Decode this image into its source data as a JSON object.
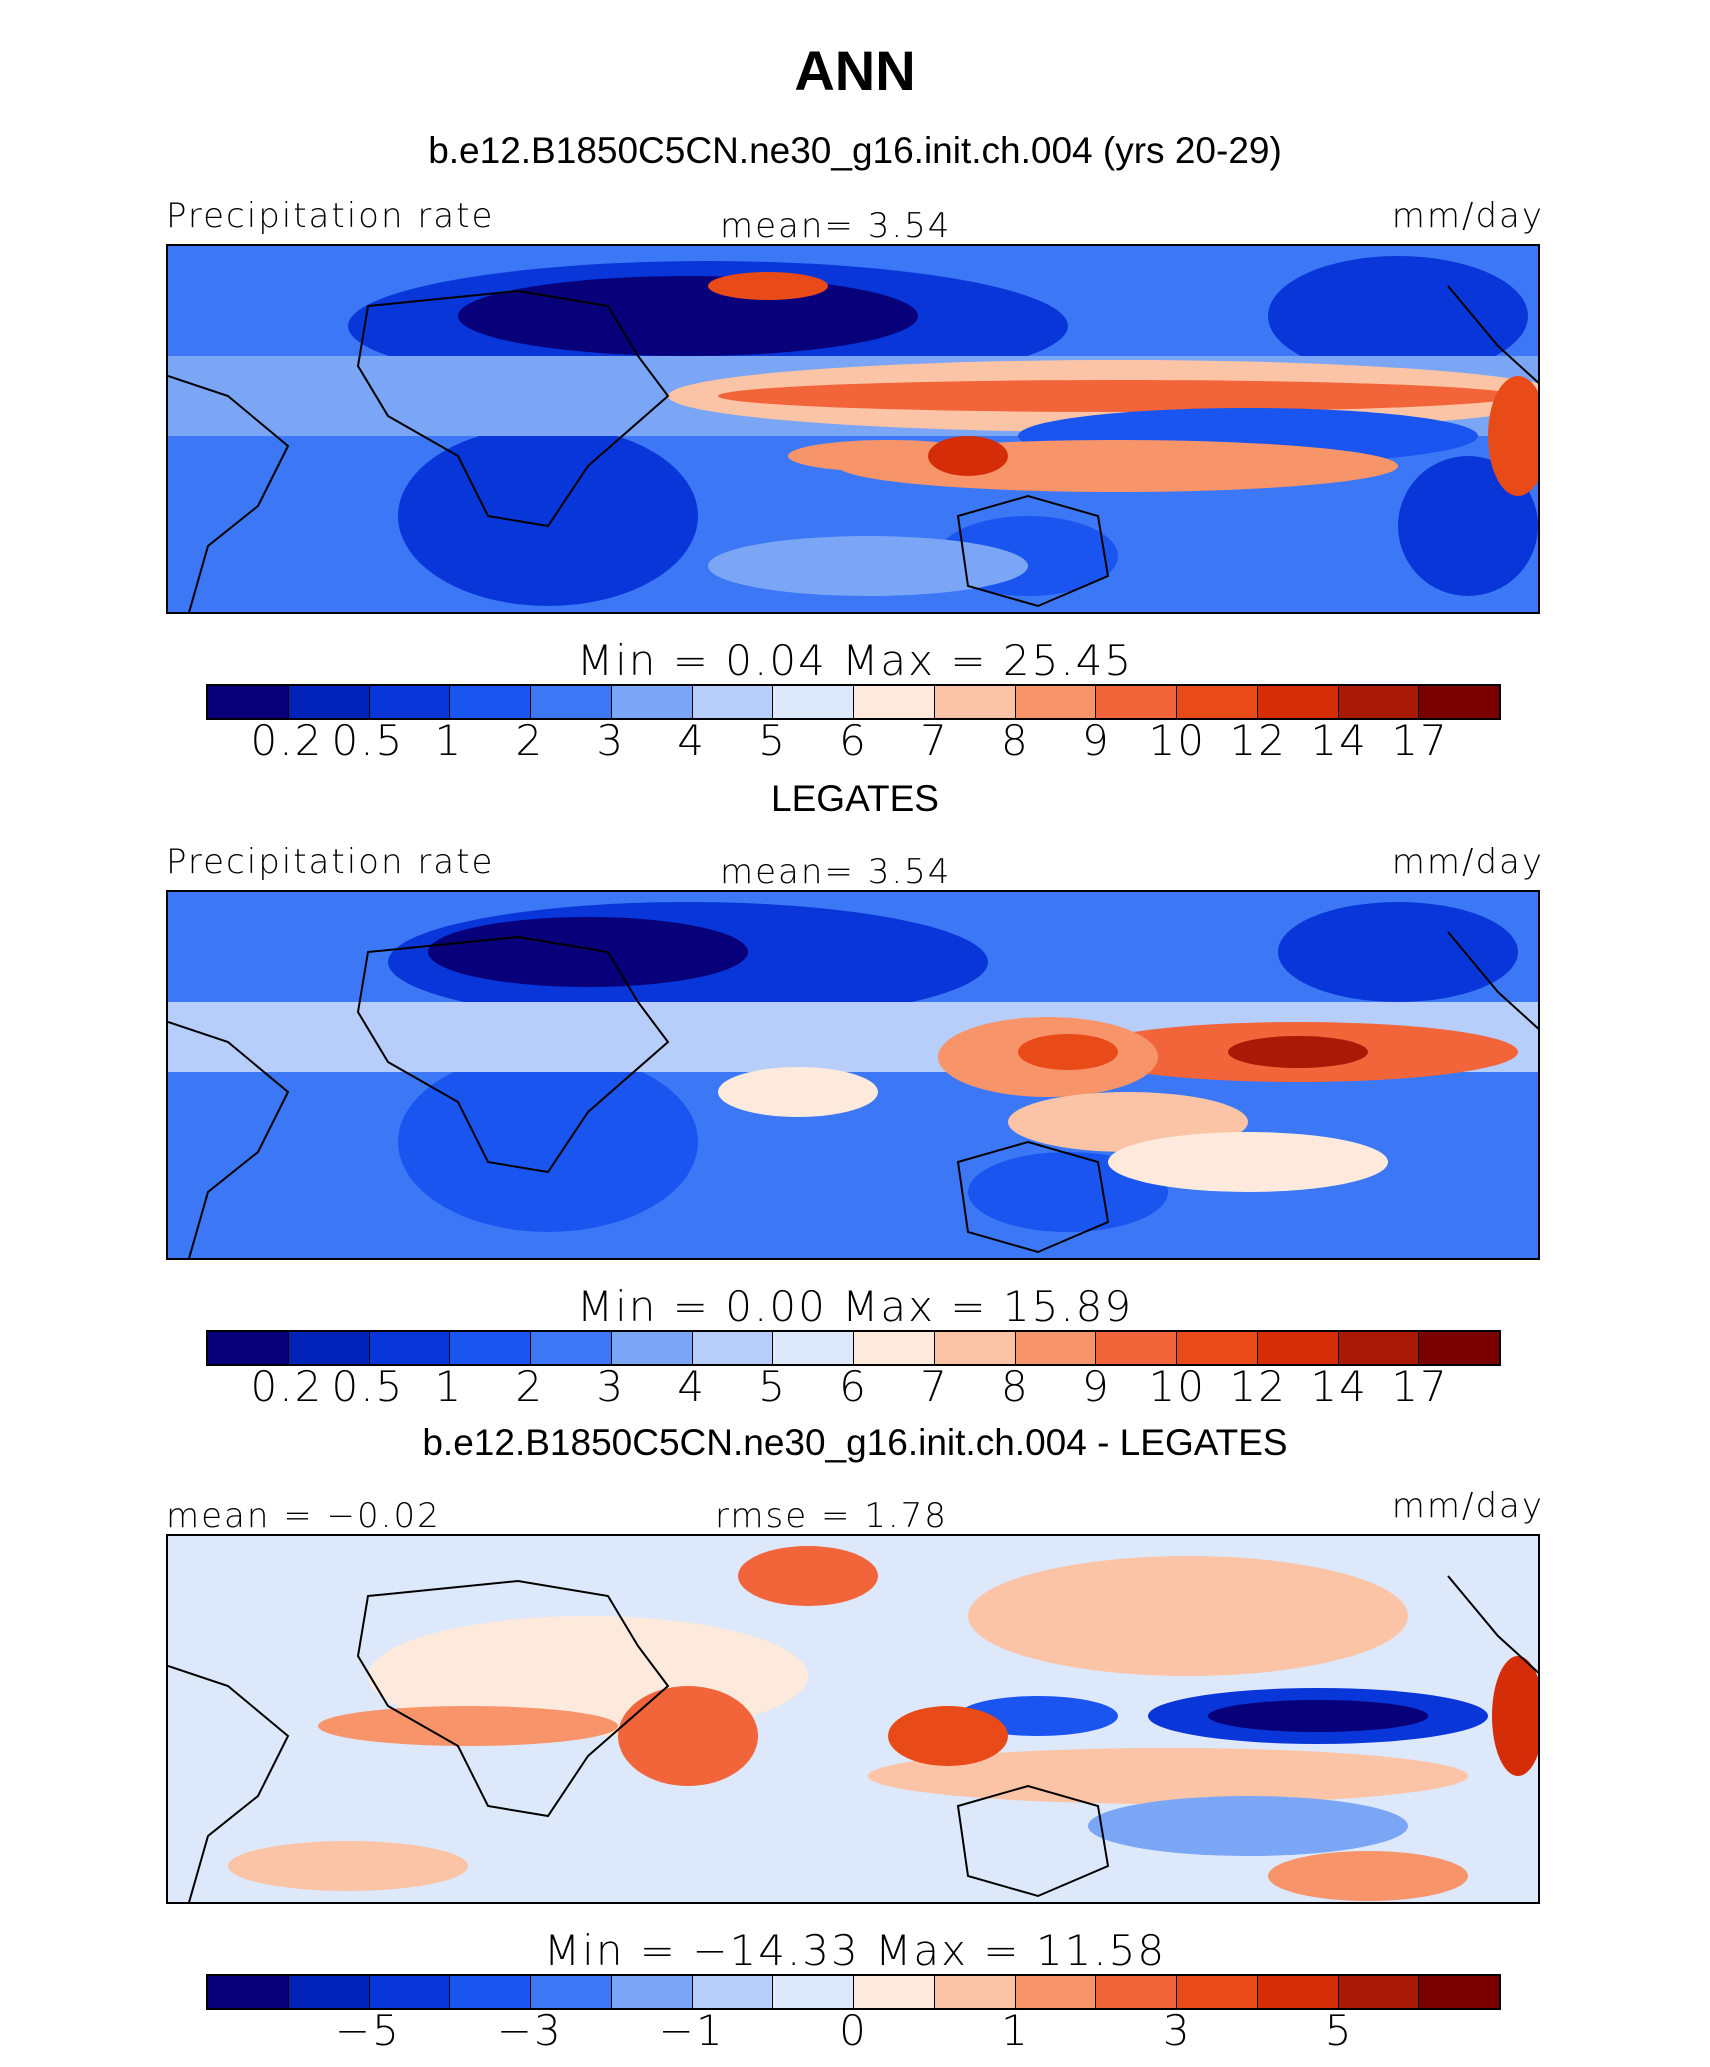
{
  "title": "ANN",
  "panels": [
    {
      "heading": "b.e12.B1850C5CN.ne30_g16.init.ch.004 (yrs 20-29)",
      "left_label": "Precipitation rate",
      "center_label": "mean=    3.54",
      "right_label": "mm/day",
      "minmax": "Min  =     0.04  Max  =    25.45",
      "tick_labels": [
        "0.2",
        "0.5",
        "1",
        "2",
        "3",
        "4",
        "5",
        "6",
        "7",
        "8",
        "9",
        "10",
        "12",
        "14",
        "17"
      ]
    },
    {
      "heading": "LEGATES",
      "left_label": "Precipitation rate",
      "center_label": "mean=    3.54",
      "right_label": "mm/day",
      "minmax": "Min  =     0.00  Max  =    15.89",
      "tick_labels": [
        "0.2",
        "0.5",
        "1",
        "2",
        "3",
        "4",
        "5",
        "6",
        "7",
        "8",
        "9",
        "10",
        "12",
        "14",
        "17"
      ]
    },
    {
      "heading": "b.e12.B1850C5CN.ne30_g16.init.ch.004 - LEGATES",
      "left_label": "mean  =   −0.02",
      "center_label": "rmse  =     1.78",
      "right_label": "mm/day",
      "minmax": "Min  =  −14.33  Max  =    11.58",
      "tick_labels": [
        "−5",
        "−3",
        "−1",
        "0",
        "1",
        "3",
        "5"
      ]
    }
  ],
  "colorbar_colors": [
    "#08007a",
    "#0022b8",
    "#0836d8",
    "#1a55f0",
    "#3c78f5",
    "#7aa6f5",
    "#b7cdfa",
    "#dde8fb",
    "#fdeadc",
    "#fcc4a6",
    "#f8946a",
    "#f26439",
    "#e84a18",
    "#d42d08",
    "#a81a06",
    "#7b0000"
  ]
}
